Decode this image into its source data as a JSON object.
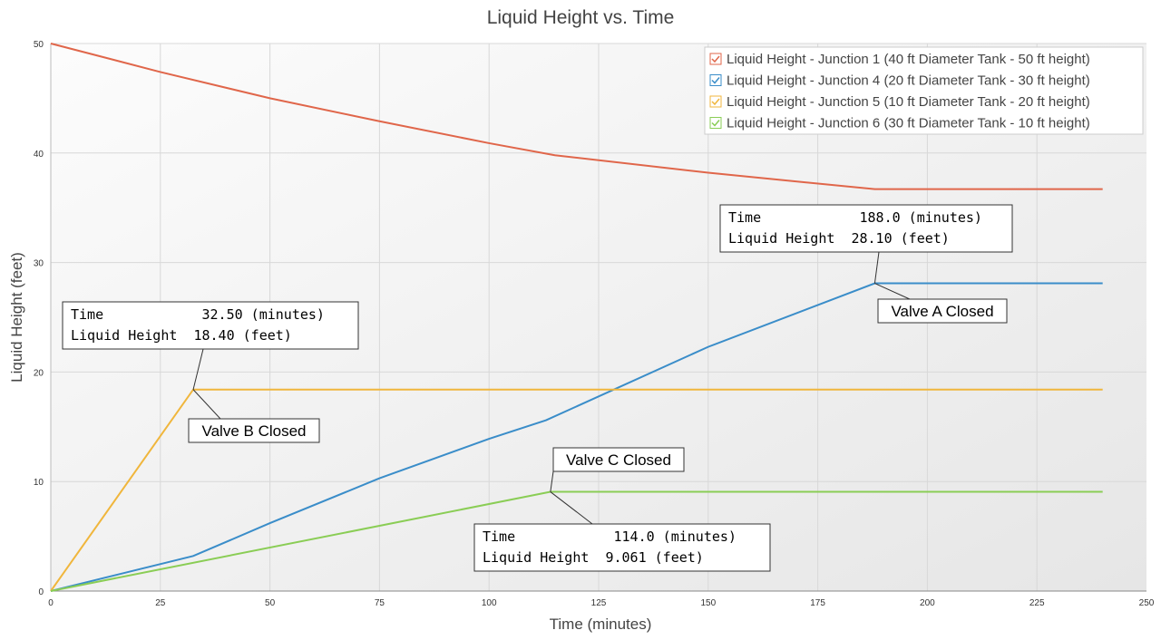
{
  "chart_data": {
    "type": "line",
    "title": "Liquid Height vs. Time",
    "xlabel": "Time (minutes)",
    "ylabel": "Liquid Height (feet)",
    "xlim": [
      0,
      250
    ],
    "ylim": [
      0,
      50
    ],
    "xticks": [
      0,
      25,
      50,
      75,
      100,
      125,
      150,
      175,
      200,
      225,
      250
    ],
    "yticks": [
      0,
      10,
      20,
      30,
      40,
      50
    ],
    "grid": true,
    "legend_position": "top-right",
    "series": [
      {
        "name": "Liquid Height - Junction 1 (40 ft Diameter Tank - 50 ft height)",
        "color": "#e0664a",
        "x": [
          0,
          25,
          50,
          75,
          100,
          115,
          150,
          188,
          240
        ],
        "y": [
          50,
          47.4,
          45.0,
          42.9,
          40.9,
          39.8,
          38.2,
          36.7,
          36.7
        ]
      },
      {
        "name": "Liquid Height - Junction 4 (20 ft Diameter Tank - 30 ft height)",
        "color": "#3a8dc9",
        "x": [
          0,
          32.5,
          50,
          75,
          100,
          113,
          150,
          188,
          240
        ],
        "y": [
          0,
          3.2,
          6.2,
          10.3,
          13.9,
          15.6,
          22.3,
          28.1,
          28.1
        ]
      },
      {
        "name": "Liquid Height - Junction 5 (10 ft Diameter Tank - 20 ft height)",
        "color": "#f0b63c",
        "x": [
          0,
          32.5,
          240
        ],
        "y": [
          0,
          18.4,
          18.4
        ]
      },
      {
        "name": "Liquid Height - Junction 6 (30 ft Diameter Tank - 10 ft height)",
        "color": "#8acd55",
        "x": [
          0,
          114,
          240
        ],
        "y": [
          0,
          9.061,
          9.061
        ]
      }
    ],
    "annotations": [
      {
        "label": "Valve A Closed",
        "x": 188.0,
        "y": 28.1,
        "lines": [
          "Time            188.0 (minutes)",
          "Liquid Height  28.10 (feet)"
        ]
      },
      {
        "label": "Valve B Closed",
        "x": 32.5,
        "y": 18.4,
        "lines": [
          "Time            32.50 (minutes)",
          "Liquid Height  18.40 (feet)"
        ]
      },
      {
        "label": "Valve C Closed",
        "x": 114.0,
        "y": 9.061,
        "lines": [
          "Time            114.0 (minutes)",
          "Liquid Height  9.061 (feet)"
        ]
      }
    ]
  }
}
